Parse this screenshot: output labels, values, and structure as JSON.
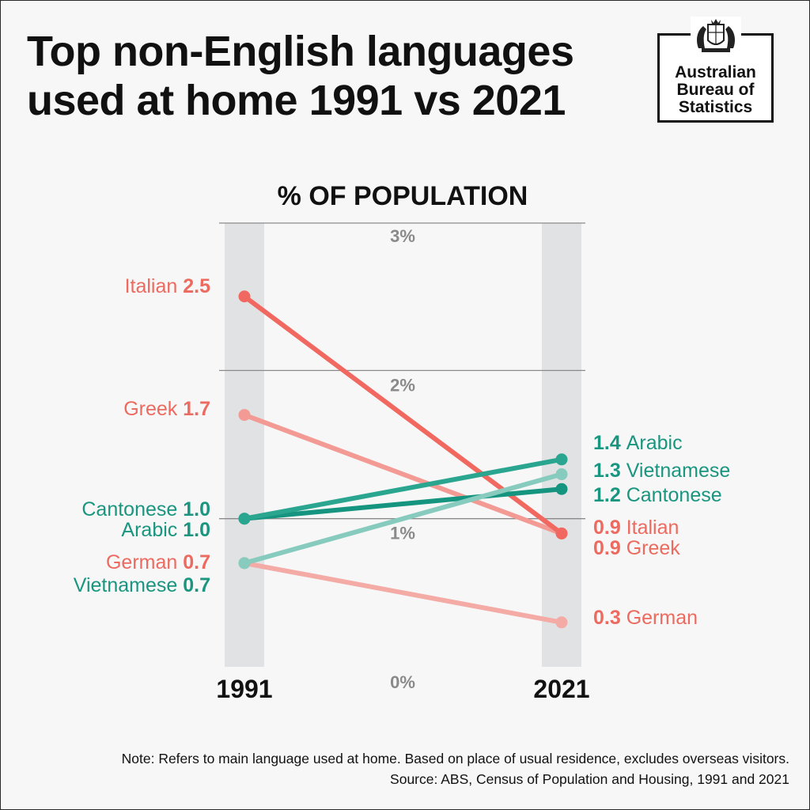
{
  "title_lines": [
    "Top non-English languages",
    "used at home 1991 vs 2021"
  ],
  "logo": {
    "crest_text": "AUSTRALIA",
    "lines": [
      "Australian",
      "Bureau of",
      "Statistics"
    ]
  },
  "note": {
    "line1": "Note: Refers to main language used at home. Based on place of usual residence, excludes overseas visitors.",
    "line2": "Source: ABS, Census of Population and Housing, 1991 and 2021"
  },
  "colors": {
    "red": "#f0685f",
    "red_light": "#f29a93",
    "pink": "#f4aaa5",
    "teal_dark": "#15957f",
    "teal": "#2aa58f",
    "teal_light": "#86cbbd",
    "label_red": "#ec6a5f",
    "label_teal": "#1a957f",
    "band": "#e1e2e4",
    "grid": "#8a8a8a",
    "tick": "#8a8a8a"
  },
  "chart_data": {
    "type": "line",
    "title": "% OF POPULATION",
    "categories": [
      "1991",
      "2021"
    ],
    "ylim": [
      0,
      3
    ],
    "y_ticks": [
      {
        "value": 3,
        "label": "3%"
      },
      {
        "value": 2,
        "label": "2%"
      },
      {
        "value": 1,
        "label": "1%"
      },
      {
        "value": 0,
        "label": "0%"
      }
    ],
    "grid": true,
    "series": [
      {
        "name": "Italian",
        "values": [
          2.5,
          0.9
        ],
        "labels": [
          "2.5",
          "0.9"
        ],
        "color": "#f0685f",
        "label_color": "#ec6a5f"
      },
      {
        "name": "Greek",
        "values": [
          1.7,
          0.9
        ],
        "labels": [
          "1.7",
          "0.9"
        ],
        "color": "#f29a93",
        "label_color": "#ec6a5f"
      },
      {
        "name": "German",
        "values": [
          0.7,
          0.3
        ],
        "labels": [
          "0.7",
          "0.3"
        ],
        "color": "#f4aaa5",
        "label_color": "#ec6a5f"
      },
      {
        "name": "Arabic",
        "values": [
          1.0,
          1.4
        ],
        "labels": [
          "1.0",
          "1.4"
        ],
        "color": "#2aa58f",
        "label_color": "#1a957f"
      },
      {
        "name": "Cantonese",
        "values": [
          1.0,
          1.2
        ],
        "labels": [
          "1.0",
          "1.2"
        ],
        "color": "#15957f",
        "label_color": "#1a957f"
      },
      {
        "name": "Vietnamese",
        "values": [
          0.7,
          1.3
        ],
        "labels": [
          "0.7",
          "1.3"
        ],
        "color": "#86cbbd",
        "label_color": "#1a957f"
      }
    ]
  }
}
